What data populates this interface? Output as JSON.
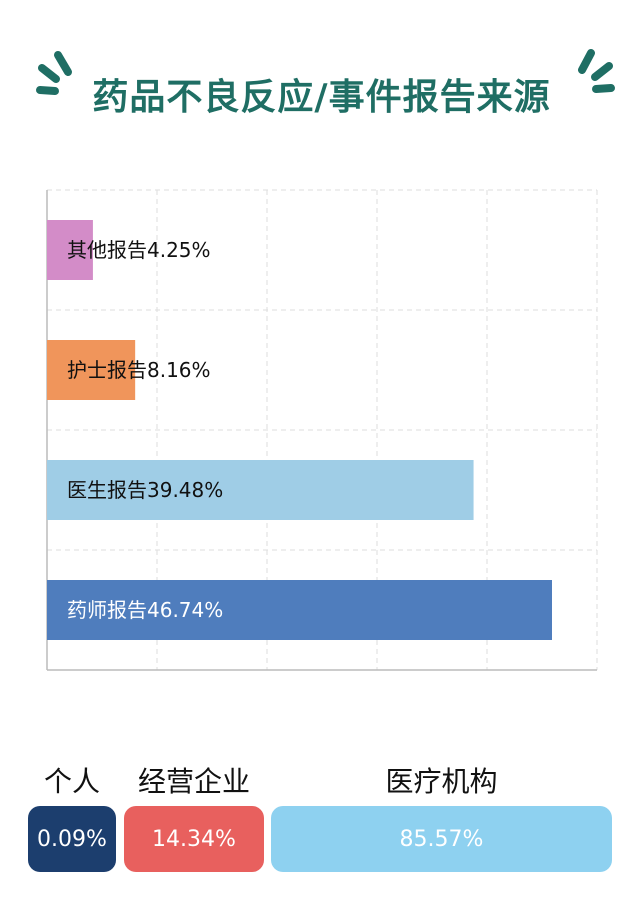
{
  "page_title": "药品不良反应/事件报告来源",
  "chart_data": {
    "type": "bar",
    "orientation": "horizontal",
    "categories": [
      "其他报告",
      "护士报告",
      "医生报告",
      "药师报告"
    ],
    "values": [
      4.25,
      8.16,
      39.48,
      46.74
    ],
    "value_labels": [
      "其他报告4.25%",
      "护士报告8.16%",
      "医生报告39.48%",
      "药师报告46.74%"
    ],
    "colors": [
      "#d38cc8",
      "#f0955b",
      "#9fcde6",
      "#4f7dbd"
    ],
    "xlim": [
      0,
      50
    ],
    "grid": true
  },
  "summary": [
    {
      "label": "个人",
      "value": "0.09%",
      "color": "#1c3e6e"
    },
    {
      "label": "经营企业",
      "value": "14.34%",
      "color": "#e8605e"
    },
    {
      "label": "医疗机构",
      "value": "85.57%",
      "color": "#8ed1f0"
    }
  ]
}
